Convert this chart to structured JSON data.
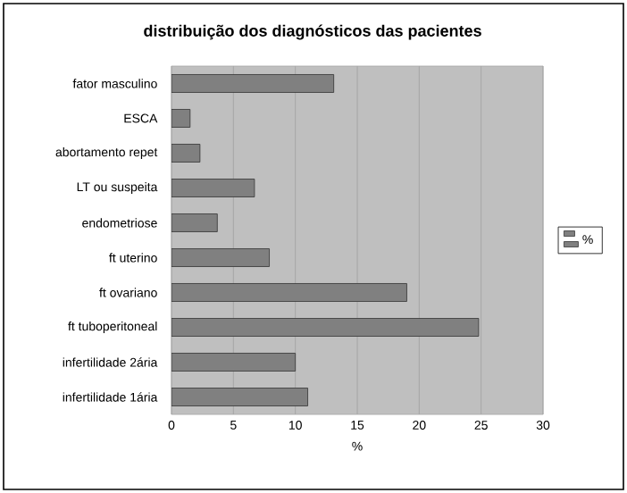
{
  "chart_data": {
    "type": "bar",
    "orientation": "horizontal",
    "title": "distribuição dos diagnósticos das pacientes",
    "xlabel": "%",
    "categories": [
      "fator masculino",
      "ESCA",
      "abortamento repet",
      "LT ou suspeita",
      "endometriose",
      "ft uterino",
      "ft ovariano",
      "ft tuboperitoneal",
      "infertilidade 2ária",
      "infertilidade 1ária"
    ],
    "series": [
      {
        "name": "%",
        "color": "#808080",
        "values": [
          13.1,
          1.5,
          2.3,
          6.7,
          3.7,
          7.9,
          19.0,
          24.8,
          10.0,
          11.0
        ]
      }
    ],
    "xlim": [
      0,
      30
    ],
    "xticks": [
      0,
      5,
      10,
      15,
      20,
      25,
      30
    ],
    "grid": "x",
    "legend": "right"
  }
}
